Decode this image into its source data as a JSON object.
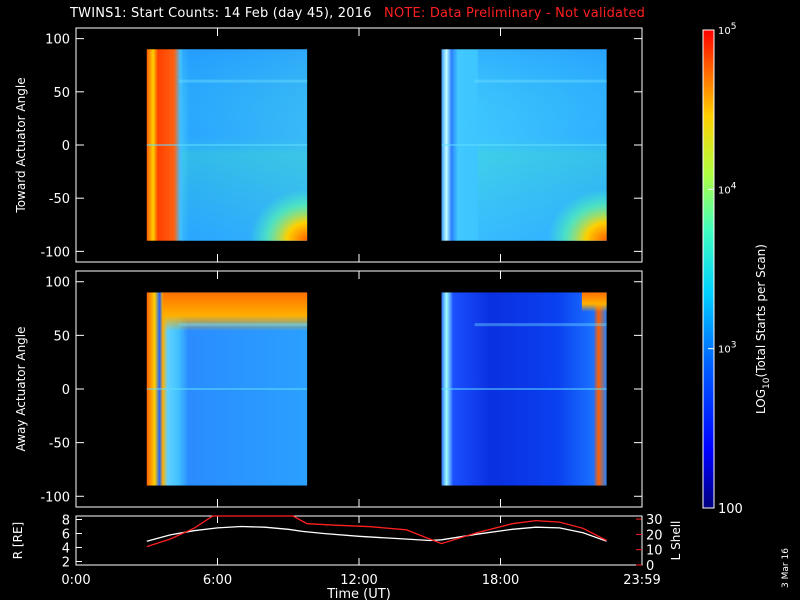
{
  "window": {
    "title": "TWINS1: Start Counts: 14 Feb (day  45), 2016",
    "note": "NOTE: Data Preliminary - Not validated",
    "date_stamp": "3 Mar 16"
  },
  "colors": {
    "background": "#000000",
    "foreground": "#ffffff",
    "note": "#ff2020",
    "lshell_line": "#ff2020",
    "r_line": "#ffffff"
  },
  "chart_data": [
    {
      "type": "heatmap",
      "title": "",
      "ylabel": "Toward Actuator Angle",
      "xlim": [
        0,
        24
      ],
      "ylim": [
        -110,
        110
      ],
      "yticks": [
        "100",
        "50",
        "0",
        "-50",
        "-100"
      ],
      "data_blocks": [
        {
          "x_range": [
            3.0,
            9.8
          ],
          "y_range": [
            -90,
            90
          ]
        },
        {
          "x_range": [
            15.5,
            22.5
          ],
          "y_range": [
            -90,
            90
          ]
        }
      ],
      "colormap": "rainbow (blue-cyan-yellow-red), log scale",
      "features": {
        "block1_edge_red_band_x": [
          3.0,
          4.5
        ],
        "background_level_log10": 3.4,
        "upper_right_blue_patch": true,
        "lower_right_hot_corner": true
      }
    },
    {
      "type": "heatmap",
      "title": "",
      "ylabel": "Away Actuator Angle",
      "xlim": [
        0,
        24
      ],
      "ylim": [
        -110,
        110
      ],
      "yticks": [
        "100",
        "50",
        "0",
        "-50",
        "-100"
      ],
      "data_blocks": [
        {
          "x_range": [
            3.0,
            9.8
          ],
          "y_range": [
            -90,
            90
          ]
        },
        {
          "x_range": [
            15.5,
            22.5
          ],
          "y_range": [
            -90,
            90
          ]
        }
      ],
      "colormap": "rainbow (blue-cyan-yellow-red), log scale",
      "features": {
        "top_edge_hot_band": true,
        "block2_dark_blue_region": true
      }
    },
    {
      "type": "line",
      "xlabel": "Time (UT)",
      "ylabel_left": "R [RE]",
      "ylabel_right": "L Shell",
      "xlim": [
        0,
        24
      ],
      "x_ticks": [
        "0:00",
        "6:00",
        "12:00",
        "18:00",
        "23:59"
      ],
      "y_left_ticks": [
        "8",
        "6",
        "4",
        "2"
      ],
      "y_right_ticks": [
        "30",
        "20",
        "10",
        "0"
      ],
      "y_left_range": [
        1.5,
        8.5
      ],
      "y_right_range": [
        0,
        32
      ],
      "series": [
        {
          "name": "R [RE]",
          "color": "#ffffff",
          "x": [
            3.0,
            4.0,
            5.0,
            6.0,
            7.0,
            8.0,
            9.0,
            9.6,
            10.5,
            12.0,
            13.5,
            15.0,
            15.5,
            17.0,
            18.5,
            19.5,
            20.5,
            21.5,
            22.5
          ],
          "y": [
            4.9,
            5.8,
            6.4,
            6.8,
            7.0,
            6.9,
            6.6,
            6.3,
            6.0,
            5.6,
            5.3,
            5.0,
            5.1,
            5.9,
            6.6,
            6.9,
            6.8,
            6.1,
            4.9
          ]
        },
        {
          "name": "L Shell",
          "color": "#ff2020",
          "x": [
            3.0,
            4.0,
            5.0,
            5.8,
            9.2,
            9.8,
            11.0,
            12.5,
            14.0,
            15.5,
            17.0,
            18.5,
            19.5,
            20.5,
            21.5,
            22.5
          ],
          "y": [
            12,
            17,
            24,
            32,
            32,
            27,
            26,
            25,
            23,
            14,
            21,
            27,
            29,
            28,
            24,
            16
          ]
        }
      ]
    },
    {
      "type": "colorbar",
      "label": "LOG10(Total Starts per Scan)",
      "label_main": "LOG",
      "label_sub": "10",
      "label_rest": "(Total Starts per Scan)",
      "scale": "log",
      "range": [
        100,
        100000
      ],
      "ticks": [
        {
          "value": 100,
          "base": "100",
          "exp": ""
        },
        {
          "value": 1000,
          "base": "10",
          "exp": "3"
        },
        {
          "value": 10000,
          "base": "10",
          "exp": "4"
        },
        {
          "value": 100000,
          "base": "10",
          "exp": "5"
        }
      ]
    }
  ]
}
